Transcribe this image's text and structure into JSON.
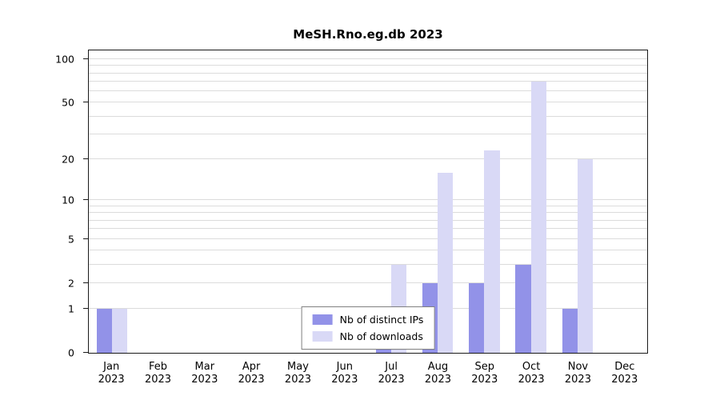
{
  "chart_data": {
    "type": "bar",
    "title": "MeSH.Rno.eg.db 2023",
    "categories": [
      "Jan",
      "Feb",
      "Mar",
      "Apr",
      "May",
      "Jun",
      "Jul",
      "Aug",
      "Sep",
      "Oct",
      "Nov",
      "Dec"
    ],
    "x_year": "2023",
    "series": [
      {
        "name": "Nb of distinct IPs",
        "color": "#9292e8",
        "values": [
          1,
          0,
          0,
          0,
          0,
          0,
          1,
          2,
          2,
          3,
          1,
          0
        ]
      },
      {
        "name": "Nb of downloads",
        "color": "#d9d9f6",
        "values": [
          1,
          0,
          0,
          0,
          0,
          0,
          3,
          16,
          23,
          70,
          20,
          0
        ]
      }
    ],
    "y_ticks": [
      0,
      1,
      2,
      5,
      10,
      20,
      50,
      100
    ],
    "y_scale": "log1p",
    "ylim": [
      0,
      115
    ],
    "grid": true,
    "legend_position": "bottom-center"
  }
}
